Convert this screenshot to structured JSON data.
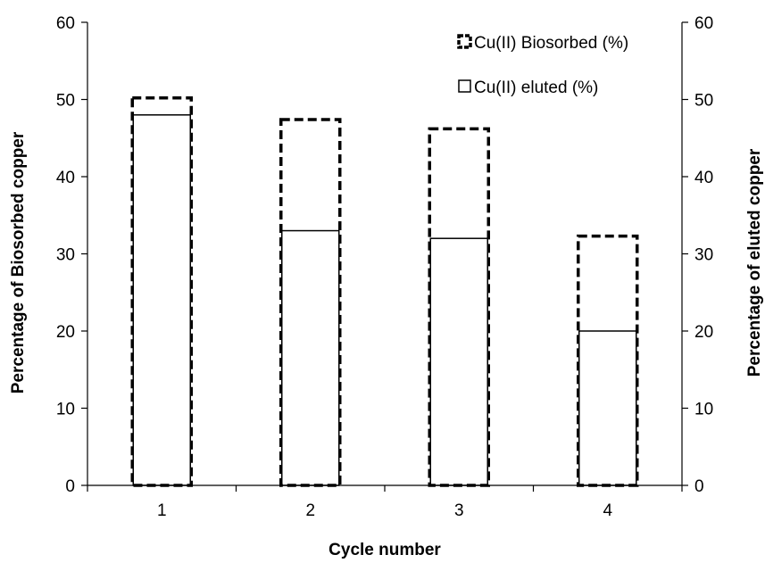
{
  "chart_data": {
    "type": "bar",
    "categories": [
      "1",
      "2",
      "3",
      "4"
    ],
    "series": [
      {
        "name": "Cu(II) Biosorbed (%)",
        "values": [
          50.2,
          47.4,
          46.2,
          32.3
        ],
        "style": "dashed"
      },
      {
        "name": "Cu(II) eluted (%)",
        "values": [
          48,
          33,
          32,
          20
        ],
        "style": "solid"
      }
    ],
    "title": "",
    "xlabel": "Cycle number",
    "ylabel": "Percentage of Biosorbed copper",
    "y2label": "Percentage of eluted copper",
    "ylim": [
      0,
      60
    ],
    "y2lim": [
      0,
      60
    ],
    "yticks": [
      "0",
      "10",
      "20",
      "30",
      "40",
      "50",
      "60"
    ],
    "y2ticks": [
      "0",
      "10",
      "20",
      "30",
      "40",
      "50",
      "60"
    ],
    "grid": false,
    "legend_position": "top-right"
  }
}
